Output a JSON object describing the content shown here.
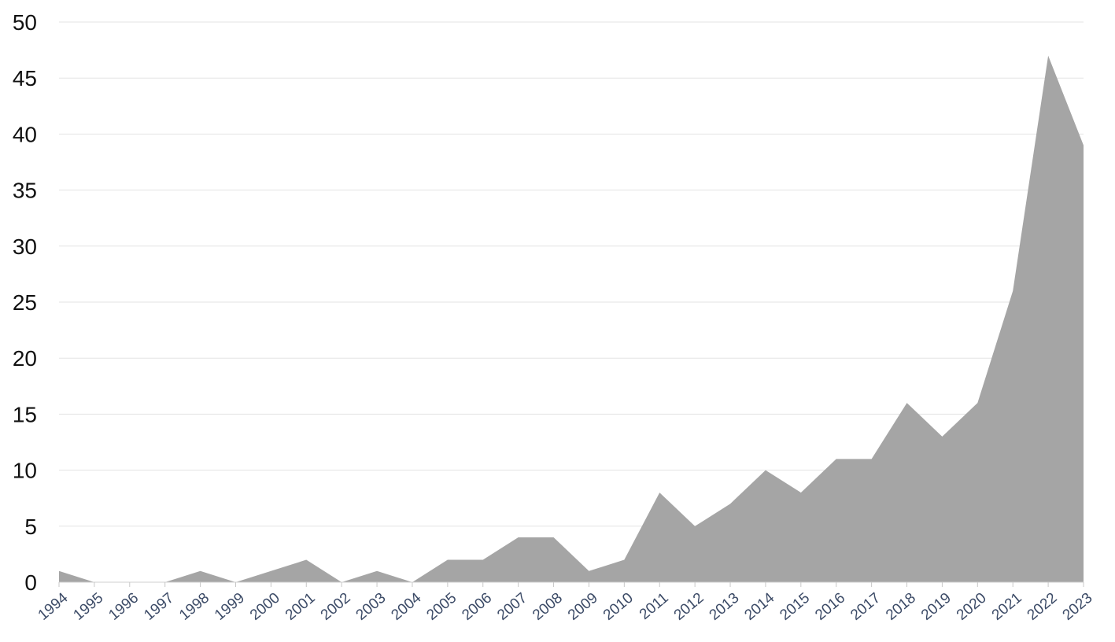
{
  "chart_data": {
    "type": "area",
    "title": "",
    "xlabel": "",
    "ylabel": "",
    "ylim": [
      0,
      50
    ],
    "yticks": [
      "0",
      "5",
      "10",
      "15",
      "20",
      "25",
      "30",
      "35",
      "40",
      "45",
      "50"
    ],
    "grid": true,
    "legend": "none",
    "fill_color": "#a5a5a5",
    "x": [
      "1994",
      "1995",
      "1996",
      "1997",
      "1998",
      "1999",
      "2000",
      "2001",
      "2002",
      "2003",
      "2004",
      "2005",
      "2006",
      "2007",
      "2008",
      "2009",
      "2010",
      "2011",
      "2012",
      "2013",
      "2014",
      "2015",
      "2016",
      "2017",
      "2018",
      "2019",
      "2020",
      "2021",
      "2022",
      "2023"
    ],
    "series": [
      {
        "values": [
          1,
          0,
          0,
          0,
          1,
          0,
          1,
          2,
          0,
          1,
          0,
          2,
          2,
          4,
          4,
          1,
          2,
          8,
          5,
          7,
          10,
          8,
          11,
          11,
          16,
          13,
          16,
          26,
          47,
          39
        ]
      }
    ]
  }
}
